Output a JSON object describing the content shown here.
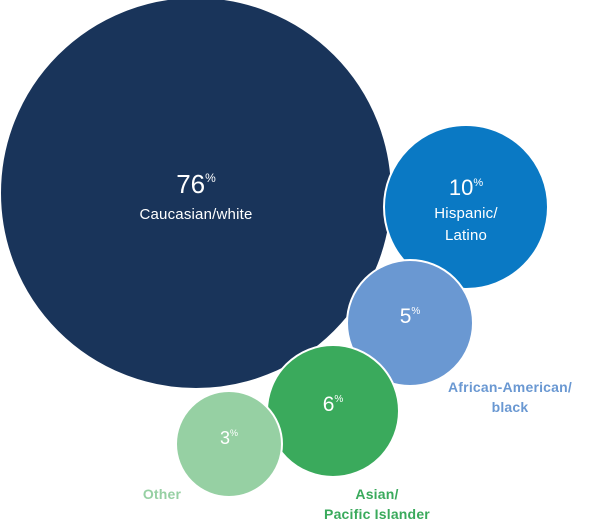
{
  "chart_data": {
    "type": "bubble",
    "title": "",
    "unit": "%",
    "series": [
      {
        "category": "Caucasian/white",
        "label_lines": [
          "Caucasian/white"
        ],
        "value": 76,
        "color": "#19345a",
        "label_position": "inside"
      },
      {
        "category": "Hispanic/Latino",
        "label_lines": [
          "Hispanic/",
          "Latino"
        ],
        "value": 10,
        "color": "#0a79c4",
        "label_position": "inside"
      },
      {
        "category": "African-American/black",
        "label_lines": [
          "African-American/",
          "black"
        ],
        "value": 5,
        "color": "#6a98d2",
        "label_position": "outside"
      },
      {
        "category": "Asian/Pacific Islander",
        "label_lines": [
          "Asian/",
          "Pacific Islander"
        ],
        "value": 6,
        "color": "#3aaa5c",
        "label_position": "outside"
      },
      {
        "category": "Other",
        "label_lines": [
          "Other"
        ],
        "value": 3,
        "color": "#96d0a3",
        "label_position": "outside"
      }
    ]
  }
}
